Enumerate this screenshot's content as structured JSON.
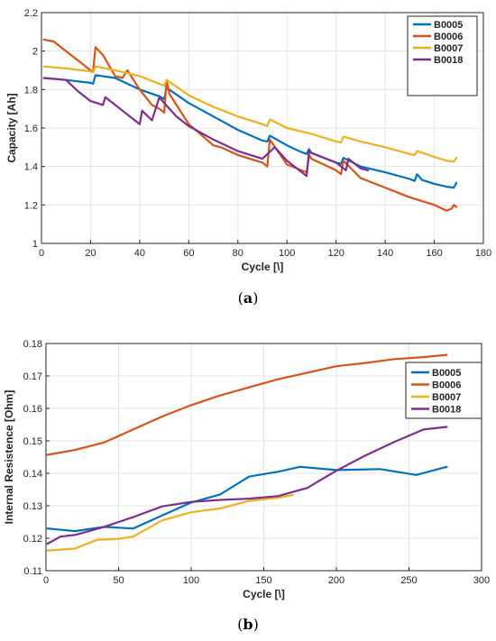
{
  "captions": {
    "a": "a",
    "b": "b"
  },
  "chart_data": [
    {
      "id": "a",
      "type": "line",
      "xlabel": "Cycle [\\]",
      "ylabel": "Capacity [Ah]",
      "xlim": [
        0,
        180
      ],
      "ylim": [
        1,
        2.2
      ],
      "xticks": [
        0,
        20,
        40,
        60,
        80,
        100,
        120,
        140,
        160,
        180
      ],
      "yticks": [
        1,
        1.2,
        1.4,
        1.6,
        1.8,
        2,
        2.2
      ],
      "ytick_labels": [
        "1",
        "1.2",
        "1.4",
        "1.6",
        "1.8",
        "2",
        "2.2"
      ],
      "grid": true,
      "legend_position": "top-right",
      "series": [
        {
          "name": "B0005",
          "color": "#0072BD",
          "x": [
            1,
            10,
            20,
            21,
            22,
            30,
            40,
            48,
            50,
            51,
            52,
            60,
            70,
            80,
            90,
            92,
            93,
            100,
            105,
            108,
            109,
            110,
            120,
            122,
            123,
            130,
            140,
            150,
            152,
            153,
            155,
            160,
            165,
            168,
            169
          ],
          "y": [
            1.86,
            1.85,
            1.835,
            1.83,
            1.875,
            1.86,
            1.8,
            1.765,
            1.75,
            1.81,
            1.8,
            1.73,
            1.66,
            1.59,
            1.535,
            1.53,
            1.56,
            1.51,
            1.48,
            1.465,
            1.49,
            1.47,
            1.42,
            1.415,
            1.445,
            1.4,
            1.37,
            1.335,
            1.325,
            1.36,
            1.33,
            1.31,
            1.295,
            1.29,
            1.315
          ]
        },
        {
          "name": "B0006",
          "color": "#D95319",
          "x": [
            1,
            5,
            10,
            15,
            20,
            21,
            22,
            25,
            30,
            33,
            35,
            40,
            45,
            48,
            50,
            51,
            52,
            55,
            60,
            70,
            73,
            80,
            90,
            92,
            93,
            100,
            108,
            109,
            110,
            120,
            122,
            123,
            130,
            140,
            150,
            160,
            165,
            167,
            168,
            169
          ],
          "y": [
            2.06,
            2.05,
            2.0,
            1.95,
            1.9,
            1.89,
            2.02,
            1.98,
            1.87,
            1.86,
            1.9,
            1.8,
            1.72,
            1.7,
            1.68,
            1.85,
            1.78,
            1.72,
            1.62,
            1.51,
            1.5,
            1.46,
            1.42,
            1.4,
            1.54,
            1.41,
            1.37,
            1.46,
            1.44,
            1.38,
            1.36,
            1.43,
            1.34,
            1.29,
            1.24,
            1.2,
            1.17,
            1.18,
            1.2,
            1.19
          ]
        },
        {
          "name": "B0007",
          "color": "#EDB120",
          "x": [
            1,
            10,
            20,
            21,
            22,
            30,
            40,
            50,
            51,
            60,
            70,
            80,
            90,
            92,
            93,
            100,
            110,
            120,
            122,
            123,
            130,
            140,
            150,
            152,
            153,
            160,
            165,
            168,
            169
          ],
          "y": [
            1.92,
            1.91,
            1.895,
            1.89,
            1.92,
            1.9,
            1.87,
            1.82,
            1.85,
            1.77,
            1.71,
            1.66,
            1.62,
            1.61,
            1.645,
            1.6,
            1.57,
            1.53,
            1.525,
            1.555,
            1.53,
            1.5,
            1.465,
            1.46,
            1.48,
            1.45,
            1.43,
            1.425,
            1.445
          ]
        },
        {
          "name": "B0018",
          "color": "#7E2F8E",
          "x": [
            1,
            10,
            15,
            20,
            25,
            26,
            30,
            40,
            41,
            45,
            48,
            50,
            55,
            60,
            70,
            80,
            90,
            95,
            100,
            108,
            109,
            110,
            120,
            124,
            125,
            130,
            133
          ],
          "y": [
            1.86,
            1.85,
            1.79,
            1.74,
            1.72,
            1.76,
            1.72,
            1.62,
            1.69,
            1.64,
            1.76,
            1.73,
            1.66,
            1.61,
            1.54,
            1.48,
            1.44,
            1.5,
            1.43,
            1.35,
            1.48,
            1.47,
            1.42,
            1.38,
            1.44,
            1.39,
            1.38
          ]
        }
      ]
    },
    {
      "id": "b",
      "type": "line",
      "xlabel": "Cycle [\\]",
      "ylabel": "Internal Resistence [Ohm]",
      "xlim": [
        0,
        300
      ],
      "ylim": [
        0.11,
        0.18
      ],
      "xticks": [
        0,
        50,
        100,
        150,
        200,
        250,
        300
      ],
      "yticks": [
        0.11,
        0.12,
        0.13,
        0.14,
        0.15,
        0.16,
        0.17,
        0.18
      ],
      "ytick_labels": [
        "0.11",
        "0.12",
        "0.13",
        "0.14",
        "0.15",
        "0.16",
        "0.17",
        "0.18"
      ],
      "grid": true,
      "legend_position": "top-right",
      "series": [
        {
          "name": "B0005",
          "color": "#0072BD",
          "x": [
            1,
            20,
            40,
            60,
            80,
            100,
            120,
            140,
            160,
            175,
            200,
            230,
            255,
            276
          ],
          "y": [
            0.123,
            0.1222,
            0.1235,
            0.123,
            0.127,
            0.131,
            0.1335,
            0.139,
            0.1405,
            0.142,
            0.141,
            0.1413,
            0.1395,
            0.142
          ]
        },
        {
          "name": "B0006",
          "color": "#D95319",
          "x": [
            1,
            20,
            40,
            60,
            80,
            100,
            120,
            140,
            160,
            180,
            200,
            220,
            240,
            260,
            276
          ],
          "y": [
            0.1457,
            0.1472,
            0.1495,
            0.1535,
            0.1575,
            0.161,
            0.164,
            0.1665,
            0.169,
            0.171,
            0.173,
            0.174,
            0.1752,
            0.1758,
            0.1765
          ]
        },
        {
          "name": "B0007",
          "color": "#EDB120",
          "x": [
            1,
            20,
            35,
            50,
            60,
            80,
            100,
            120,
            140,
            160,
            170
          ],
          "y": [
            0.1162,
            0.1168,
            0.1195,
            0.1198,
            0.1205,
            0.1255,
            0.128,
            0.1292,
            0.1315,
            0.1325,
            0.1333
          ]
        },
        {
          "name": "B0018",
          "color": "#7E2F8E",
          "x": [
            1,
            10,
            20,
            40,
            60,
            80,
            100,
            120,
            140,
            160,
            180,
            200,
            220,
            240,
            260,
            276
          ],
          "y": [
            0.1183,
            0.1205,
            0.121,
            0.1235,
            0.1265,
            0.1298,
            0.1312,
            0.1318,
            0.1322,
            0.133,
            0.1355,
            0.1408,
            0.1455,
            0.1497,
            0.1535,
            0.1543
          ]
        }
      ]
    }
  ]
}
